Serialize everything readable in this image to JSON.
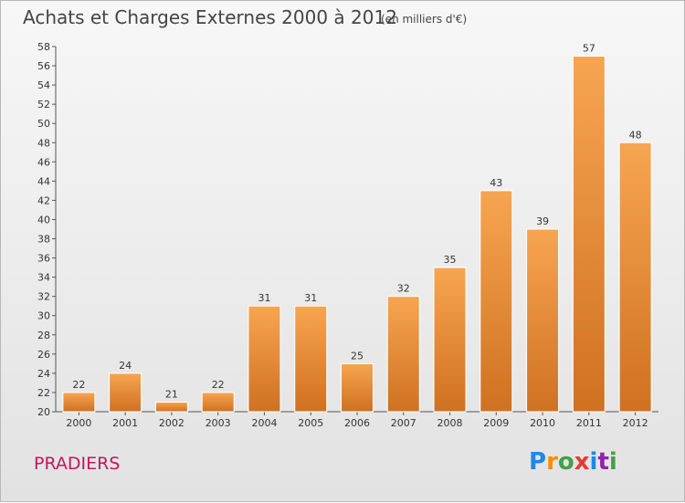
{
  "header": {
    "title": "Achats et Charges Externes 2000 à 2012",
    "subtitle": "(en milliers d'€)"
  },
  "footer": {
    "location": "PRADIERS",
    "brand_letters": [
      "P",
      "r",
      "o",
      "x",
      "i",
      "t",
      "i"
    ]
  },
  "colors": {
    "bar_light": "#f7a551",
    "bar_dark": "#cf7121",
    "location_text": "#c2185b"
  },
  "chart_data": {
    "type": "bar",
    "categories": [
      "2000",
      "2001",
      "2002",
      "2003",
      "2004",
      "2005",
      "2006",
      "2007",
      "2008",
      "2009",
      "2010",
      "2011",
      "2012"
    ],
    "values": [
      22,
      24,
      21,
      22,
      31,
      31,
      25,
      32,
      35,
      43,
      39,
      57,
      48
    ],
    "title": "Achats et Charges Externes 2000 à 2012",
    "subtitle": "(en milliers d'€)",
    "ylim": [
      20,
      58
    ],
    "yticks": [
      20,
      22,
      24,
      26,
      28,
      30,
      32,
      34,
      36,
      38,
      40,
      42,
      44,
      46,
      48,
      50,
      52,
      54,
      56,
      58
    ],
    "grid": false,
    "legend": "none"
  }
}
